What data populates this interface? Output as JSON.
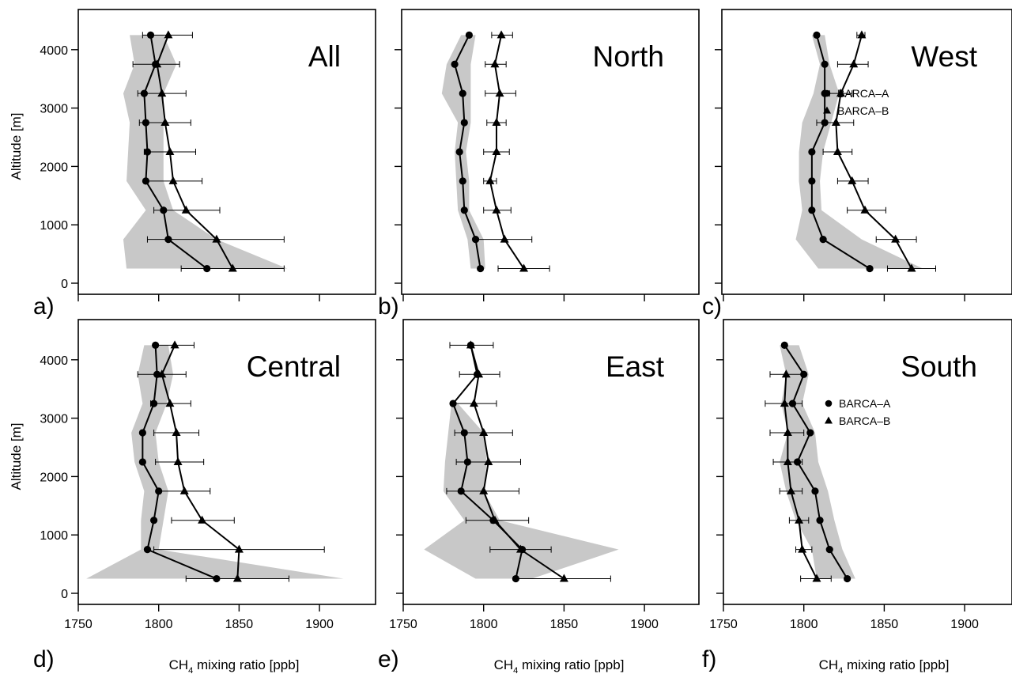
{
  "figure": {
    "panel_letters": [
      "a)",
      "b)",
      "c)",
      "d)",
      "e)",
      "f)"
    ],
    "ylabel": "Altitude [m]",
    "xlabel_prefix": "CH",
    "xlabel_sub": "4",
    "xlabel_suffix": " mixing ratio [ppb]",
    "x_ticks": [
      1750,
      1800,
      1850,
      1900
    ],
    "y_ticks": [
      0,
      1000,
      2000,
      3000,
      4000
    ],
    "legend": {
      "a": "BARCA–A",
      "b": "BARCA–B"
    },
    "colors": {
      "band": "#c8c8c8",
      "line": "#000000"
    }
  },
  "chart_data": [
    {
      "type": "line",
      "panel": "a)",
      "title": "All",
      "legend": false,
      "xlim": [
        1740,
        1925
      ],
      "ylim": [
        -150,
        4600
      ],
      "series": [
        {
          "name": "BARCA–A",
          "marker": "circle",
          "x": [
            1795,
            1798,
            1791,
            1792,
            1793,
            1792,
            1803,
            1806,
            1830
          ],
          "y": [
            4250,
            3750,
            3250,
            2750,
            2250,
            1750,
            1250,
            750,
            250
          ]
        },
        {
          "name": "BARCA–B",
          "marker": "triangle",
          "x": [
            1806,
            1799,
            1802,
            1804,
            1807,
            1809,
            1817,
            1836,
            1846
          ],
          "y": [
            4250,
            3750,
            3250,
            2750,
            2250,
            1750,
            1250,
            750,
            250
          ],
          "err_low": [
            1790,
            1784,
            1787,
            1788,
            1791,
            1792,
            1797,
            1793,
            1814
          ],
          "err_high": [
            1821,
            1813,
            1817,
            1820,
            1823,
            1827,
            1838,
            1878,
            1878
          ]
        }
      ],
      "band": {
        "y": [
          4250,
          3750,
          3250,
          2750,
          2250,
          1750,
          1250,
          750,
          250
        ],
        "low": [
          1782,
          1785,
          1778,
          1782,
          1781,
          1780,
          1792,
          1778,
          1780
        ],
        "high": [
          1803,
          1811,
          1803,
          1803,
          1803,
          1803,
          1809,
          1836,
          1880
        ]
      }
    },
    {
      "type": "line",
      "panel": "b)",
      "title": "North",
      "legend": false,
      "xlim": [
        1740,
        1925
      ],
      "ylim": [
        -150,
        4600
      ],
      "series": [
        {
          "name": "BARCA–A",
          "marker": "circle",
          "x": [
            1791,
            1782,
            1787,
            1788,
            1785,
            1787,
            1788,
            1795,
            1798
          ],
          "y": [
            4250,
            3750,
            3250,
            2750,
            2250,
            1750,
            1250,
            750,
            250
          ]
        },
        {
          "name": "BARCA–B",
          "marker": "triangle",
          "x": [
            1811,
            1807,
            1810,
            1808,
            1808,
            1804,
            1808,
            1813,
            1825
          ],
          "y": [
            4250,
            3750,
            3250,
            2750,
            2250,
            1750,
            1250,
            750,
            250
          ],
          "err_low": [
            1805,
            1801,
            1801,
            1802,
            1800,
            1800,
            1800,
            1796,
            1809
          ],
          "err_high": [
            1818,
            1814,
            1820,
            1814,
            1816,
            1808,
            1817,
            1830,
            1841
          ]
        }
      ],
      "band": {
        "y": [
          4250,
          3750,
          3250,
          2750,
          2250,
          1750,
          1250,
          750,
          250
        ],
        "low": [
          1786,
          1777,
          1774,
          1784,
          1782,
          1783,
          1784,
          1790,
          1792
        ],
        "high": [
          1795,
          1792,
          1792,
          1792,
          1789,
          1791,
          1791,
          1800,
          1801
        ]
      }
    },
    {
      "type": "line",
      "panel": "c)",
      "title": "West",
      "legend": true,
      "xlim": [
        1740,
        1925
      ],
      "ylim": [
        -150,
        4600
      ],
      "series": [
        {
          "name": "BARCA–A",
          "marker": "circle",
          "x": [
            1808,
            1813,
            1813,
            1813,
            1805,
            1805,
            1805,
            1812,
            1841
          ],
          "y": [
            4250,
            3750,
            3250,
            2750,
            2250,
            1750,
            1250,
            750,
            250
          ]
        },
        {
          "name": "BARCA–B",
          "marker": "triangle",
          "x": [
            1836,
            1831,
            1823,
            1820,
            1821,
            1830,
            1838,
            1857,
            1867
          ],
          "y": [
            4250,
            3750,
            3250,
            2750,
            2250,
            1750,
            1250,
            750,
            250
          ],
          "err_low": [
            1833,
            1821,
            1816,
            1808,
            1812,
            1821,
            1827,
            1845,
            1852
          ],
          "err_high": [
            1838,
            1840,
            1830,
            1831,
            1830,
            1840,
            1851,
            1870,
            1882
          ]
        }
      ],
      "band": {
        "y": [
          4250,
          3750,
          3250,
          2750,
          2250,
          1750,
          1250,
          750,
          250
        ],
        "low": [
          1805,
          1810,
          1806,
          1799,
          1797,
          1797,
          1799,
          1795,
          1809
        ],
        "high": [
          1813,
          1816,
          1822,
          1817,
          1812,
          1810,
          1811,
          1836,
          1874
        ]
      }
    },
    {
      "type": "line",
      "panel": "d)",
      "title": "Central",
      "legend": false,
      "xlim": [
        1740,
        1925
      ],
      "ylim": [
        -150,
        4600
      ],
      "series": [
        {
          "name": "BARCA–A",
          "marker": "circle",
          "x": [
            1798,
            1799,
            1797,
            1790,
            1790,
            1800,
            1797,
            1793,
            1836
          ],
          "y": [
            4250,
            3750,
            3250,
            2750,
            2250,
            1750,
            1250,
            750,
            250
          ]
        },
        {
          "name": "BARCA–B",
          "marker": "triangle",
          "x": [
            1810,
            1802,
            1807,
            1811,
            1812,
            1816,
            1827,
            1850,
            1849
          ],
          "y": [
            4250,
            3750,
            3250,
            2750,
            2250,
            1750,
            1250,
            750,
            250
          ],
          "err_low": [
            1798,
            1787,
            1795,
            1797,
            1798,
            1801,
            1808,
            1797,
            1817
          ],
          "err_high": [
            1822,
            1817,
            1820,
            1825,
            1828,
            1832,
            1847,
            1903,
            1881
          ]
        }
      ],
      "band": {
        "y": [
          4250,
          3750,
          3250,
          2750,
          2250,
          1750,
          1250,
          750,
          250
        ],
        "low": [
          1791,
          1787,
          1790,
          1783,
          1785,
          1791,
          1789,
          1789,
          1755
        ],
        "high": [
          1806,
          1809,
          1805,
          1798,
          1800,
          1806,
          1803,
          1800,
          1915
        ]
      }
    },
    {
      "type": "line",
      "panel": "e)",
      "title": "East",
      "legend": false,
      "xlim": [
        1740,
        1925
      ],
      "ylim": [
        -150,
        4600
      ],
      "series": [
        {
          "name": "BARCA–A",
          "marker": "circle",
          "x": [
            1792,
            1796,
            1781,
            1788,
            1790,
            1786,
            1806,
            1824,
            1820
          ],
          "y": [
            4250,
            3750,
            3250,
            2750,
            2250,
            1750,
            1250,
            750,
            250
          ]
        },
        {
          "name": "BARCA–B",
          "marker": "triangle",
          "x": [
            1792,
            1797,
            1794,
            1800,
            1803,
            1800,
            1807,
            1823,
            1850
          ],
          "y": [
            4250,
            3750,
            3250,
            2750,
            2250,
            1750,
            1250,
            750,
            250
          ],
          "err_low": [
            1779,
            1785,
            1781,
            1782,
            1783,
            1777,
            1789,
            1804,
            1821
          ],
          "err_high": [
            1806,
            1810,
            1808,
            1818,
            1823,
            1822,
            1828,
            1842,
            1879
          ]
        }
      ],
      "band": {
        "y": [
          3250,
          2750,
          2250,
          1750,
          1250,
          750,
          250
        ],
        "low": [
          1780,
          1778,
          1776,
          1775,
          1788,
          1763,
          1795
        ],
        "high": [
          1784,
          1800,
          1802,
          1800,
          1810,
          1884,
          1830
        ]
      }
    },
    {
      "type": "line",
      "panel": "f)",
      "title": "South",
      "legend": true,
      "xlim": [
        1740,
        1925
      ],
      "ylim": [
        -150,
        4600
      ],
      "series": [
        {
          "name": "BARCA–A",
          "marker": "circle",
          "x": [
            1788,
            1800,
            1793,
            1804,
            1796,
            1807,
            1810,
            1816,
            1827
          ],
          "y": [
            4250,
            3750,
            3250,
            2750,
            2250,
            1750,
            1250,
            750,
            250
          ]
        },
        {
          "name": "BARCA–B",
          "marker": "triangle",
          "x": [
            1789,
            1788,
            1790,
            1790,
            1792,
            1797,
            1799,
            1808
          ],
          "y": [
            3750,
            3250,
            2750,
            2250,
            1750,
            1250,
            750,
            250
          ],
          "err_low": [
            1779,
            1776,
            1779,
            1781,
            1785,
            1791,
            1795,
            1798
          ],
          "err_high": [
            1799,
            1799,
            1800,
            1799,
            1799,
            1803,
            1805,
            1817
          ]
        }
      ],
      "band": {
        "y": [
          4250,
          3750,
          3250,
          2750,
          2250,
          1750,
          1250,
          750,
          250
        ],
        "low": [
          1785,
          1789,
          1786,
          1790,
          1785,
          1789,
          1795,
          1805,
          1808
        ],
        "high": [
          1797,
          1803,
          1799,
          1807,
          1809,
          1815,
          1819,
          1824,
          1832
        ]
      }
    }
  ]
}
